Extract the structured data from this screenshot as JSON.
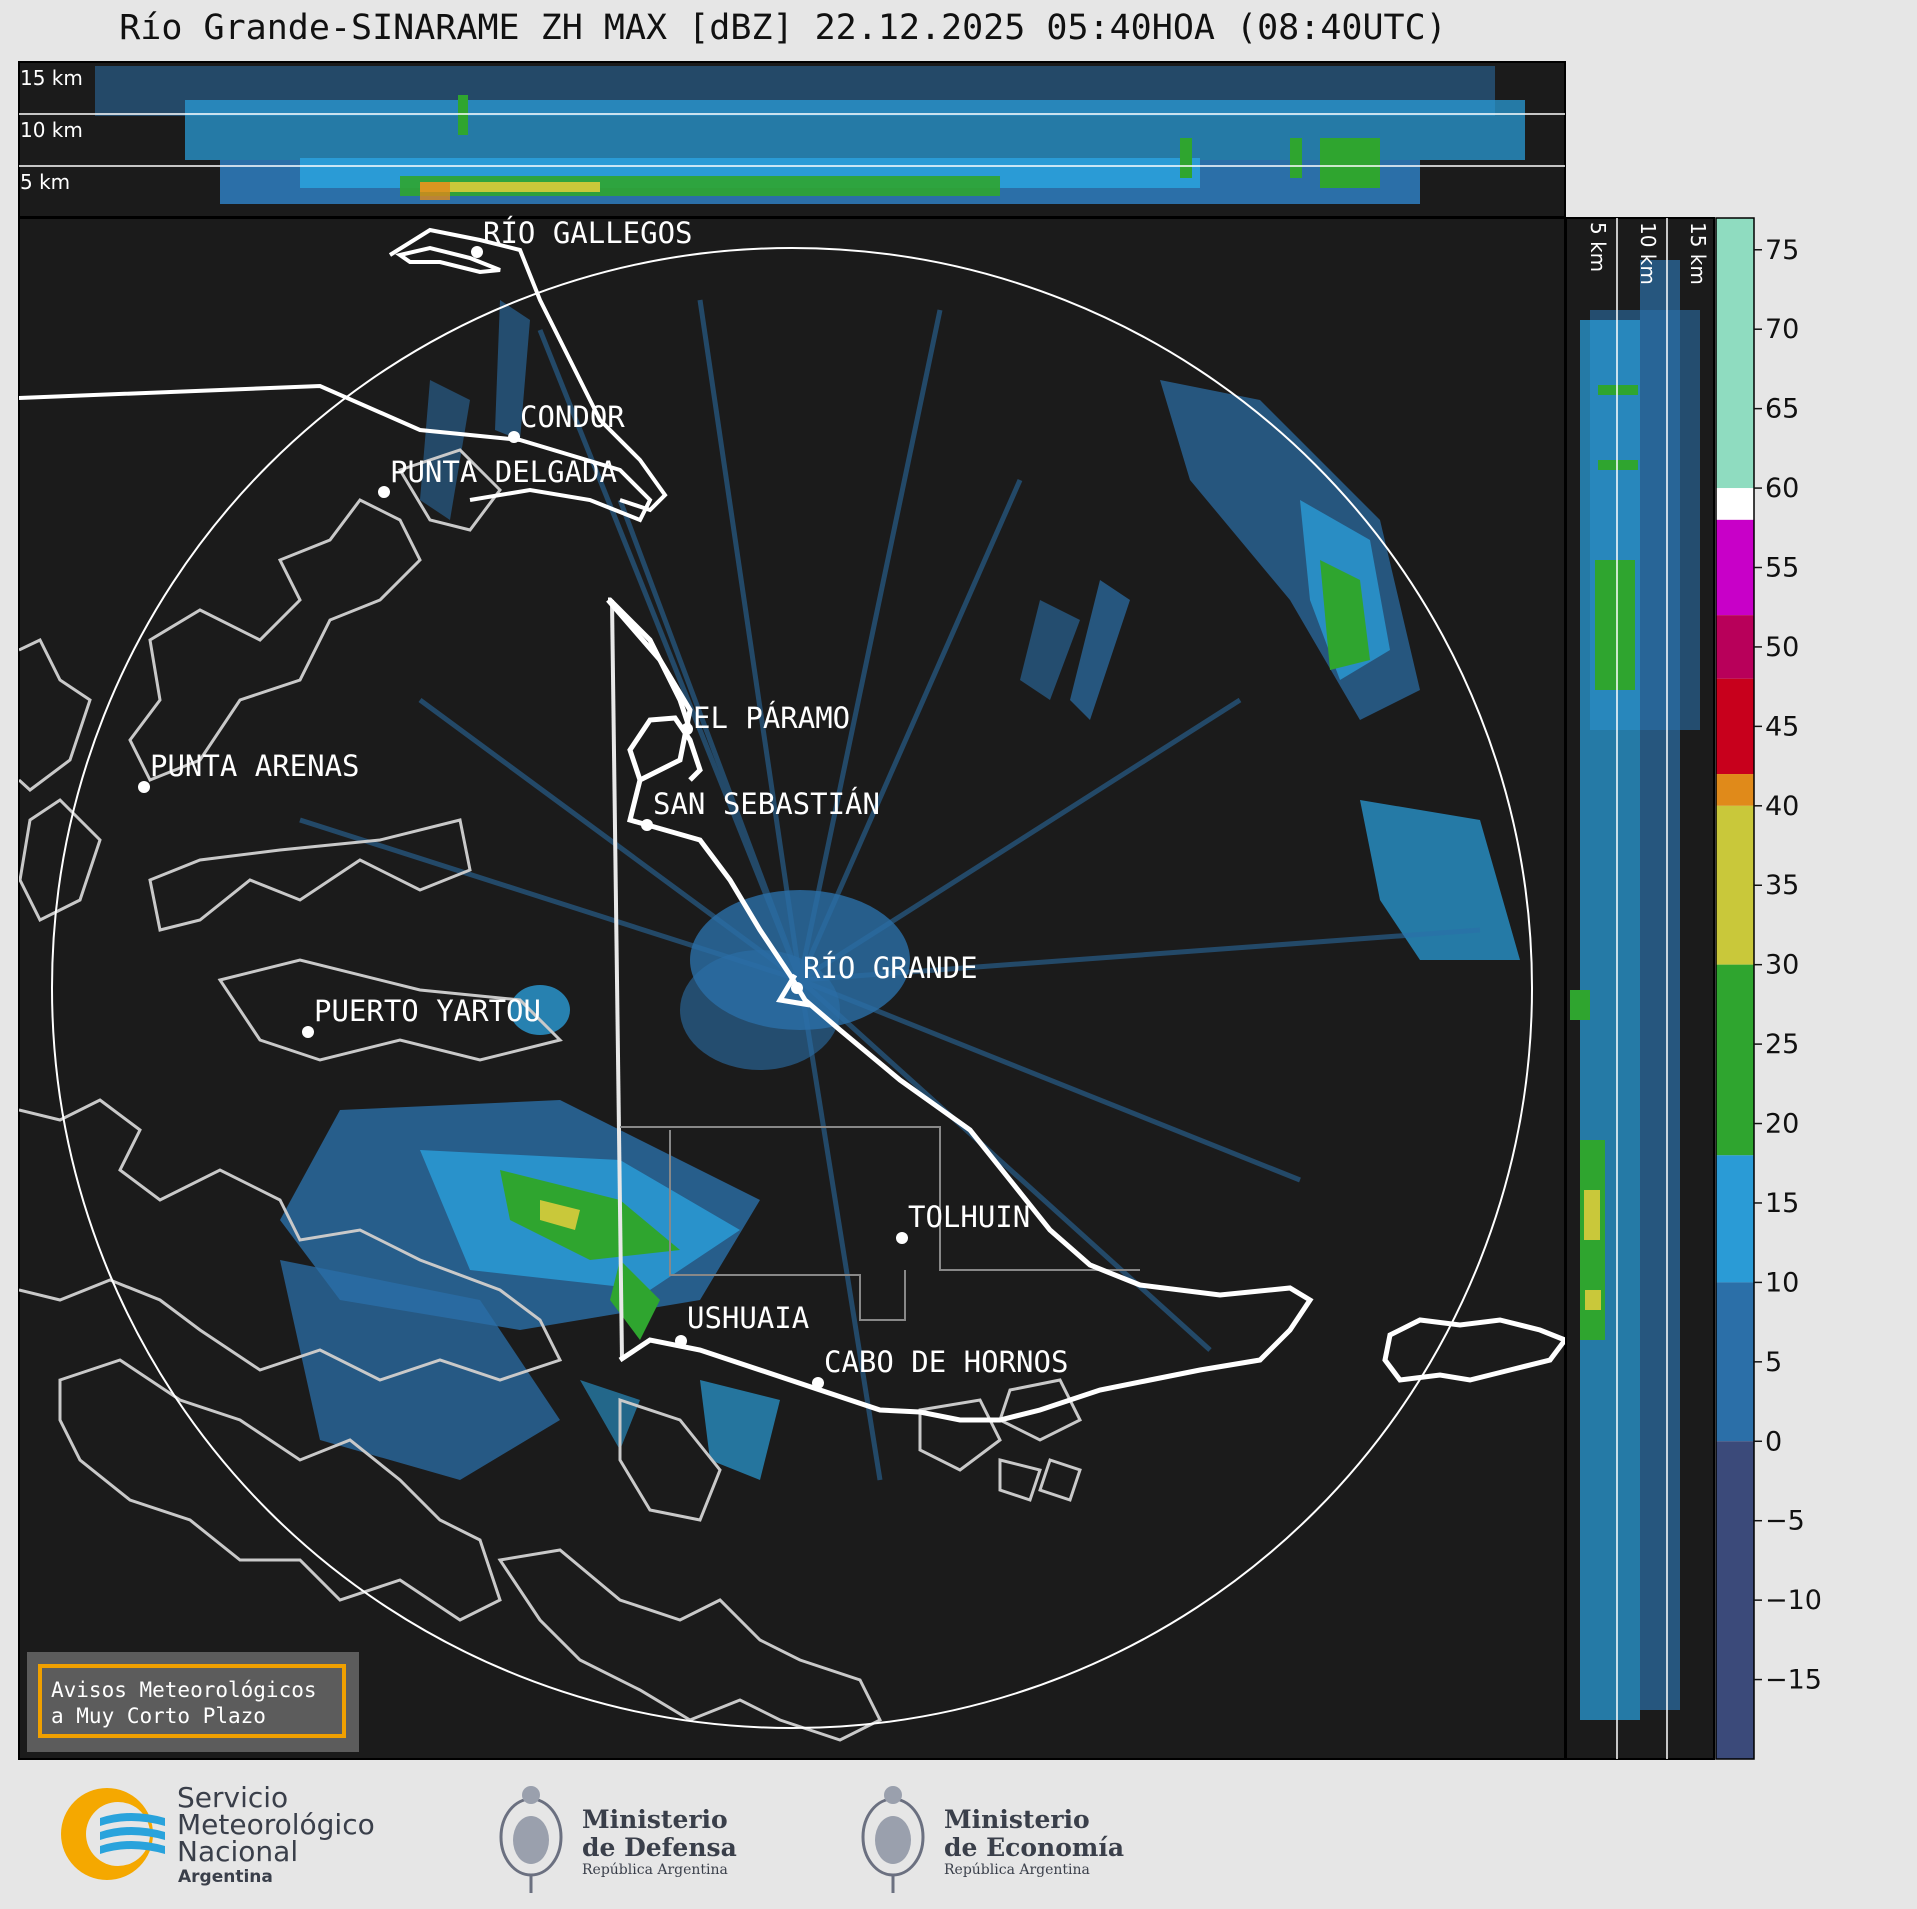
{
  "title": "Río Grande-SINARAME ZH MAX [dBZ] 22.12.2025 05:40HOA (08:40UTC)",
  "height_labels": [
    "15 km",
    "10 km",
    "5 km"
  ],
  "locations": [
    {
      "name": "RÍO GALLEGOS"
    },
    {
      "name": "CONDOR"
    },
    {
      "name": "PUNTA DELGADA"
    },
    {
      "name": "EL PÁRAMO"
    },
    {
      "name": "PUNTA ARENAS"
    },
    {
      "name": "SAN SEBASTIÁN"
    },
    {
      "name": "RÍO GRANDE"
    },
    {
      "name": "PUERTO YARTOU"
    },
    {
      "name": "TOLHUIN"
    },
    {
      "name": "USHUAIA"
    },
    {
      "name": "CABO DE HORNOS"
    }
  ],
  "colorbar": {
    "unit": "dBZ",
    "ticks": [
      "75",
      "70",
      "65",
      "60",
      "55",
      "50",
      "45",
      "40",
      "35",
      "30",
      "25",
      "20",
      "15",
      "10",
      "5",
      "0",
      "−5",
      "−10",
      "−15"
    ],
    "segments": [
      {
        "from": 60,
        "to": 77,
        "color": "#8fdcc0"
      },
      {
        "from": 58,
        "to": 60,
        "color": "#ffffff"
      },
      {
        "from": 52,
        "to": 58,
        "color": "#c800c8"
      },
      {
        "from": 48,
        "to": 52,
        "color": "#b8005a"
      },
      {
        "from": 42,
        "to": 48,
        "color": "#c8001c"
      },
      {
        "from": 40,
        "to": 42,
        "color": "#e08a1a"
      },
      {
        "from": 30,
        "to": 40,
        "color": "#c9c83a"
      },
      {
        "from": 18,
        "to": 30,
        "color": "#2fa52f"
      },
      {
        "from": 10,
        "to": 18,
        "color": "#2a9bd6"
      },
      {
        "from": 0,
        "to": 10,
        "color": "#2b6fa8"
      },
      {
        "from": -20,
        "to": 0,
        "color": "#3b4a7a"
      }
    ]
  },
  "warning_box": {
    "line1": "Avisos Meteorológicos",
    "line2": "a Muy Corto Plazo"
  },
  "logos": {
    "smn": {
      "line1": "Servicio",
      "line2": "Meteorológico",
      "line3": "Nacional",
      "line4": "Argentina"
    },
    "defensa": {
      "line1": "Ministerio",
      "line2": "de Defensa",
      "line3": "República Argentina"
    },
    "economia": {
      "line1": "Ministerio",
      "line2": "de Economía",
      "line3": "República Argentina"
    }
  },
  "colors": {
    "panel_bg": "#1b1b1b",
    "page_bg": "#e6e6e6",
    "accent_box": "#f0a000"
  }
}
